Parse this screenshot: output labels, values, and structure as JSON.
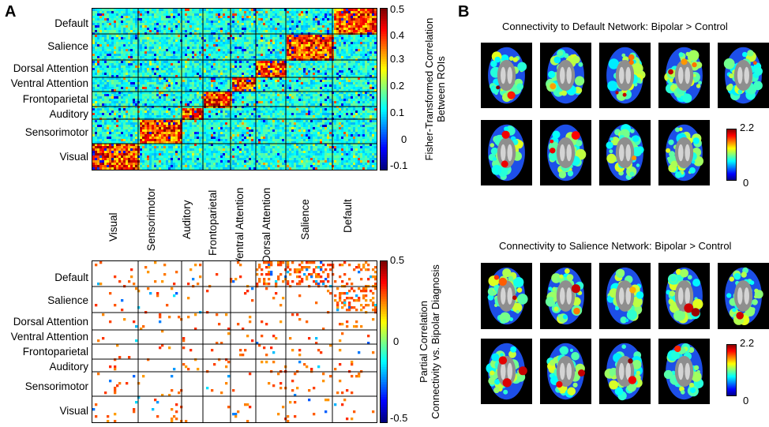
{
  "panel_a": {
    "letter": "A",
    "networks": [
      "Default",
      "Salience",
      "Dorsal Attention",
      "Ventral Attention",
      "Frontoparietal",
      "Auditory",
      "Sensorimotor",
      "Visual"
    ],
    "x_networks": [
      "Visual",
      "Sensorimotor",
      "Auditory",
      "Frontoparietal",
      "Ventral Attention",
      "Dorsal Attention",
      "Salience",
      "Default"
    ],
    "top_colorbar": {
      "title_line1": "Fisher-Transformed Correlation",
      "title_line2": "Between ROIs",
      "ticks": [
        "0.5",
        "0.4",
        "0.3",
        "0.2",
        "0.1",
        "0",
        "-0.1"
      ]
    },
    "bottom_colorbar": {
      "title_line1": "Partial Correlation",
      "title_line2": "Connectivity vs. Bipolar Diagnosis",
      "ticks": [
        "0.5",
        "0",
        "-0.5"
      ]
    }
  },
  "panel_b": {
    "letter": "B",
    "default_title": "Connectivity to Default Network: Bipolar > Control",
    "salience_title": "Connectivity to Salience Network: Bipolar > Control",
    "scale_max": "2.2",
    "scale_min": "0"
  },
  "colors": {
    "jet_dark_blue": "#00008f",
    "jet_blue": "#0050ff",
    "jet_cyan": "#00dfff",
    "jet_yellow": "#ffd000",
    "jet_red": "#ff2000",
    "jet_dark_red": "#800000"
  }
}
